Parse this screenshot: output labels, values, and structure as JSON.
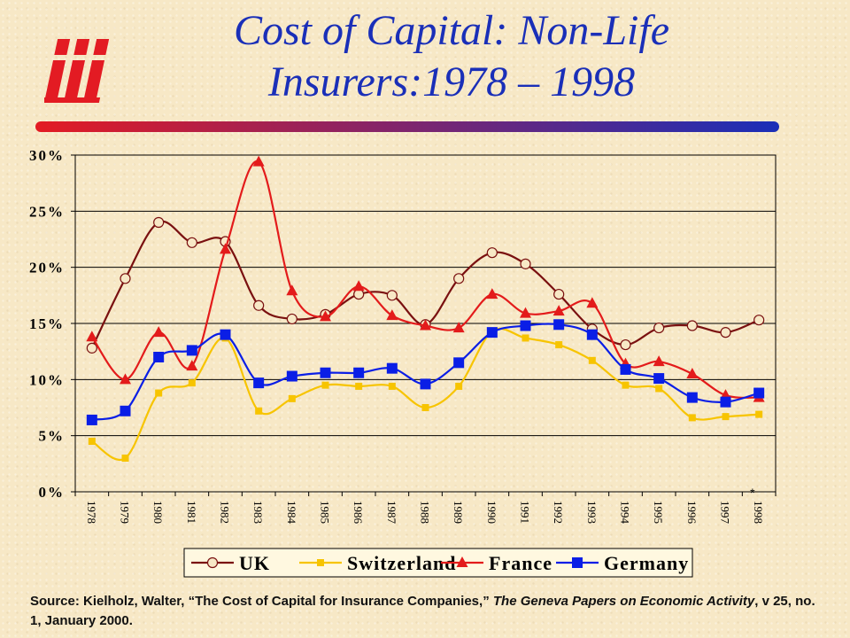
{
  "logo_text": "iii",
  "title_lines": [
    "Cost of Capital: Non-Life",
    "Insurers:1978 – 1998"
  ],
  "colors": {
    "title": "#1a2fb8",
    "rule_start": "#e31b23",
    "rule_end": "#1a2fb8",
    "uk": "#7a1010",
    "switzerland": "#f7c400",
    "france": "#e31b1b",
    "germany": "#0a1ee6"
  },
  "chart_data": {
    "type": "line",
    "categories": [
      "1978",
      "1979",
      "1980",
      "1981",
      "1982",
      "1983",
      "1984",
      "1985",
      "1986",
      "1987",
      "1988",
      "1989",
      "1990",
      "1991",
      "1992",
      "1993",
      "1994",
      "1995",
      "1996",
      "1997",
      "1998"
    ],
    "ylim": [
      0,
      30
    ],
    "y_ticks": [
      "0%",
      "5%",
      "10%",
      "15%",
      "20%",
      "25%",
      "30%"
    ],
    "grid": true,
    "legend_position": "bottom",
    "annotation": "*",
    "series": [
      {
        "name": "UK",
        "marker": "open-circle",
        "color": "#7a1010",
        "values": [
          12.8,
          19.0,
          24.0,
          22.2,
          22.3,
          16.6,
          15.4,
          15.8,
          17.6,
          17.5,
          14.9,
          19.0,
          21.3,
          20.3,
          17.6,
          14.5,
          13.1,
          14.6,
          14.8,
          14.2,
          15.3
        ]
      },
      {
        "name": "Switzerland",
        "marker": "square",
        "color": "#f7c400",
        "values": [
          4.5,
          3.0,
          8.8,
          9.7,
          13.7,
          7.2,
          8.3,
          9.5,
          9.4,
          9.4,
          7.5,
          9.4,
          14.3,
          13.7,
          13.1,
          11.7,
          9.5,
          9.2,
          6.6,
          6.7,
          6.9
        ]
      },
      {
        "name": "France",
        "marker": "triangle",
        "color": "#e31b1b",
        "values": [
          13.8,
          10.0,
          14.2,
          11.2,
          21.6,
          29.4,
          17.9,
          15.6,
          18.3,
          15.7,
          14.8,
          14.6,
          17.6,
          15.9,
          16.1,
          16.8,
          11.4,
          11.6,
          10.5,
          8.6,
          8.4
        ]
      },
      {
        "name": "Germany",
        "marker": "square",
        "color": "#0a1ee6",
        "values": [
          6.4,
          7.2,
          12.0,
          12.6,
          14.0,
          9.7,
          10.3,
          10.6,
          10.6,
          11.0,
          9.6,
          11.5,
          14.2,
          14.8,
          14.9,
          14.0,
          10.9,
          10.1,
          8.4,
          8.0,
          8.8
        ]
      }
    ]
  },
  "source": {
    "prefix": "Source: Kielholz, Walter, “The Cost of Capital for Insurance Companies,” ",
    "journal": "The Geneva Papers on Economic Activity",
    "suffix": ", v 25, no. 1, January 2000."
  }
}
